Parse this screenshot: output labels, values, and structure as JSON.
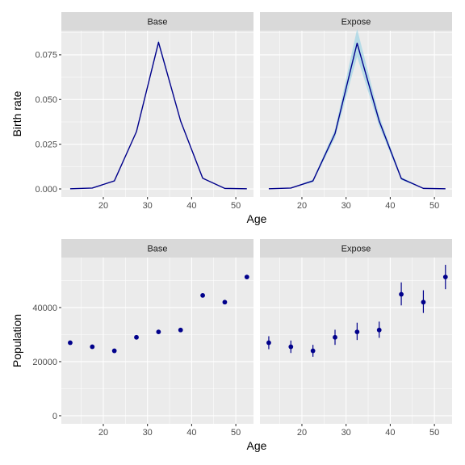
{
  "colors": {
    "line": "#00008b",
    "ribbon": "#add8e6",
    "point": "#00008b"
  },
  "chart_data": [
    {
      "type": "line",
      "facets": [
        "Base",
        "Expose"
      ],
      "xlabel": "Age",
      "ylabel": "Birth rate",
      "xlim": [
        10.5,
        54
      ],
      "ylim": [
        -0.0045,
        0.0885
      ],
      "x_ticks": [
        20,
        30,
        40,
        50
      ],
      "x_tick_labels": [
        "20",
        "30",
        "40",
        "50"
      ],
      "y_ticks": [
        0,
        0.025,
        0.05,
        0.075
      ],
      "y_tick_labels": [
        "0.000",
        "0.025",
        "0.050",
        "0.075"
      ],
      "x": [
        12.5,
        17.5,
        22.5,
        27.5,
        32.5,
        37.5,
        42.5,
        47.5,
        52.5
      ],
      "series": [
        {
          "facet": "Base",
          "values": [
            0.0001,
            0.0005,
            0.0045,
            0.032,
            0.082,
            0.038,
            0.006,
            0.0003,
            0.0001
          ],
          "lower": [
            0.0001,
            0.0005,
            0.0043,
            0.0315,
            0.0808,
            0.0375,
            0.0058,
            0.0003,
            0.0001
          ],
          "upper": [
            0.0001,
            0.0005,
            0.0047,
            0.0325,
            0.0835,
            0.0385,
            0.0062,
            0.0003,
            0.0001
          ]
        },
        {
          "facet": "Expose",
          "values": [
            0.0001,
            0.0005,
            0.0045,
            0.031,
            0.0815,
            0.038,
            0.0058,
            0.0003,
            0.0001
          ],
          "lower": [
            0.0001,
            0.0004,
            0.0038,
            0.0285,
            0.074,
            0.035,
            0.005,
            0.0002,
            0.0001
          ],
          "upper": [
            0.0001,
            0.0006,
            0.0052,
            0.0335,
            0.0895,
            0.041,
            0.0066,
            0.0004,
            0.0001
          ]
        }
      ]
    },
    {
      "type": "scatter",
      "facets": [
        "Base",
        "Expose"
      ],
      "xlabel": "Age",
      "ylabel": "Population",
      "xlim": [
        10.5,
        54
      ],
      "ylim": [
        -3000,
        58500
      ],
      "x_ticks": [
        20,
        30,
        40,
        50
      ],
      "x_tick_labels": [
        "20",
        "30",
        "40",
        "50"
      ],
      "y_ticks": [
        0,
        20000,
        40000
      ],
      "y_tick_labels": [
        "0",
        "20000",
        "40000"
      ],
      "x": [
        12.5,
        17.5,
        22.5,
        27.5,
        32.5,
        37.5,
        42.5,
        47.5,
        52.5
      ],
      "series": [
        {
          "facet": "Base",
          "values": [
            27000,
            25500,
            24000,
            29000,
            31000,
            31700,
            44500,
            42000,
            51300
          ]
        },
        {
          "facet": "Expose",
          "values": [
            27000,
            25500,
            24000,
            29000,
            31000,
            31700,
            44900,
            42000,
            51300
          ],
          "lower": [
            24600,
            23200,
            21800,
            26200,
            28000,
            28800,
            40800,
            38000,
            46800
          ],
          "upper": [
            29400,
            27800,
            26200,
            31800,
            34400,
            34800,
            49300,
            46400,
            55800
          ]
        }
      ]
    }
  ]
}
